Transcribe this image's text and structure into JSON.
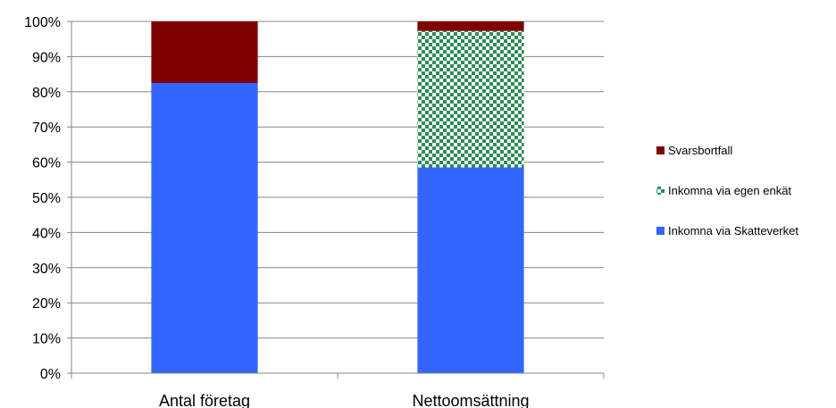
{
  "chart_data": {
    "type": "bar",
    "stacked": true,
    "percent": true,
    "title": "",
    "xlabel": "",
    "ylabel": "",
    "categories": [
      "Antal företag",
      "Nettoomsättning"
    ],
    "series": [
      {
        "name": "Inkomna via Skatteverket",
        "values": [
          82.5,
          58.5
        ],
        "color": "#3366ff",
        "pattern": "solid"
      },
      {
        "name": "Inkomna via egen enkät",
        "values": [
          0,
          38.8
        ],
        "color": "#2e8b57",
        "pattern": "checker"
      },
      {
        "name": "Svarsbortfall",
        "values": [
          17.5,
          2.7
        ],
        "color": "#800000",
        "pattern": "solid"
      }
    ],
    "ylim": [
      0,
      100
    ],
    "yticks": [
      "0%",
      "10%",
      "20%",
      "30%",
      "40%",
      "50%",
      "60%",
      "70%",
      "80%",
      "90%",
      "100%"
    ],
    "grid": true,
    "legend": {
      "position": "right",
      "order": [
        "Svarsbortfall",
        "Inkomna via egen enkät",
        "Inkomna via Skatteverket"
      ]
    }
  }
}
